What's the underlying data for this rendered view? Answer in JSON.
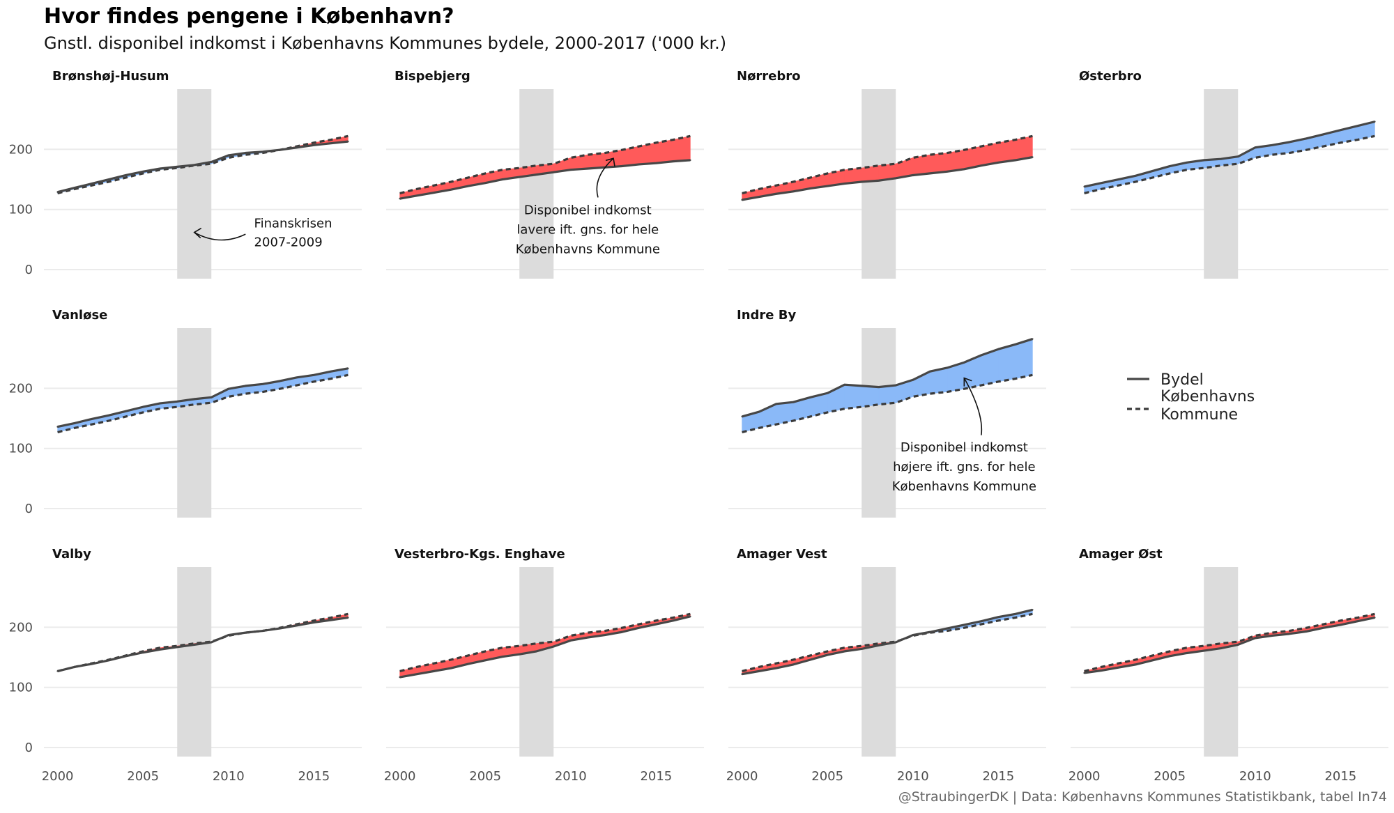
{
  "title": "Hvor findes pengene i København?",
  "subtitle": "Gnstl. disponibel indkomst i Københavns Kommunes bydele, 2000-2017 ('000 kr.)",
  "caption": "@StraubingerDK | Data: Københavns Kommunes Statistikbank, tabel In74",
  "chart_data": {
    "type": "line",
    "x": [
      2000,
      2001,
      2002,
      2003,
      2004,
      2005,
      2006,
      2007,
      2008,
      2009,
      2010,
      2011,
      2012,
      2013,
      2014,
      2015,
      2016,
      2017
    ],
    "xticks": [
      2000,
      2005,
      2010,
      2015
    ],
    "yticks": [
      0,
      100,
      200
    ],
    "ylim": [
      -15,
      300
    ],
    "xlim": [
      1999.2,
      2017.8
    ],
    "shaded_period": [
      2007,
      2009
    ],
    "colors": {
      "above": "#8ab9f8",
      "below": "#ff5a5a",
      "line": "#474747",
      "shade": "#dcdcdc",
      "grid": "#ebebeb"
    },
    "reference": {
      "name": "Københavns Kommune",
      "values": [
        127,
        134,
        140,
        146,
        153,
        160,
        166,
        169,
        173,
        176,
        186,
        191,
        194,
        199,
        205,
        211,
        216,
        222
      ]
    },
    "panels": [
      {
        "name": "Brønshøj-Husum",
        "values": [
          129,
          136,
          143,
          150,
          157,
          163,
          168,
          171,
          174,
          179,
          190,
          194,
          196,
          199,
          203,
          207,
          210,
          213
        ]
      },
      {
        "name": "Bispebjerg",
        "values": [
          118,
          123,
          128,
          133,
          139,
          144,
          150,
          154,
          158,
          162,
          166,
          168,
          170,
          172,
          175,
          177,
          180,
          182
        ]
      },
      {
        "name": "Nørrebro",
        "values": [
          116,
          121,
          126,
          130,
          135,
          139,
          143,
          146,
          148,
          152,
          157,
          160,
          163,
          167,
          173,
          178,
          182,
          187
        ]
      },
      {
        "name": "Østerbro",
        "values": [
          138,
          144,
          150,
          156,
          164,
          172,
          178,
          182,
          184,
          188,
          203,
          207,
          212,
          218,
          225,
          232,
          239,
          246
        ]
      },
      {
        "name": "Vanløse",
        "values": [
          136,
          142,
          149,
          155,
          162,
          169,
          175,
          178,
          182,
          185,
          199,
          204,
          207,
          212,
          218,
          222,
          228,
          233
        ]
      },
      {
        "name": "Indre By",
        "values": [
          153,
          161,
          174,
          177,
          185,
          192,
          206,
          204,
          202,
          205,
          214,
          228,
          234,
          243,
          255,
          265,
          273,
          282
        ]
      },
      {
        "name": "Valby",
        "values": [
          127,
          134,
          139,
          145,
          152,
          158,
          163,
          167,
          171,
          175,
          187,
          191,
          194,
          198,
          203,
          208,
          212,
          216
        ]
      },
      {
        "name": "Vesterbro-Kgs. Enghave",
        "values": [
          117,
          122,
          127,
          132,
          139,
          145,
          151,
          155,
          160,
          168,
          178,
          183,
          187,
          192,
          199,
          205,
          211,
          218
        ]
      },
      {
        "name": "Amager Vest",
        "values": [
          122,
          127,
          132,
          138,
          146,
          154,
          160,
          164,
          170,
          175,
          187,
          192,
          198,
          204,
          210,
          217,
          222,
          229
        ]
      },
      {
        "name": "Amager Øst",
        "values": [
          124,
          128,
          133,
          138,
          145,
          152,
          157,
          161,
          165,
          171,
          182,
          186,
          189,
          193,
          199,
          204,
          210,
          216
        ]
      }
    ],
    "legend": {
      "items": [
        "Bydel",
        "Københavns Kommune"
      ]
    },
    "annotations": {
      "finanskrisen": [
        "Finanskrisen",
        "2007-2009"
      ],
      "lavere": [
        "Disponibel indkomst",
        "lavere ift. gns. for hele",
        "Københavns Kommune"
      ],
      "hoejere": [
        "Disponibel indkomst",
        "højere ift. gns. for hele",
        "Københavns Kommune"
      ]
    }
  }
}
